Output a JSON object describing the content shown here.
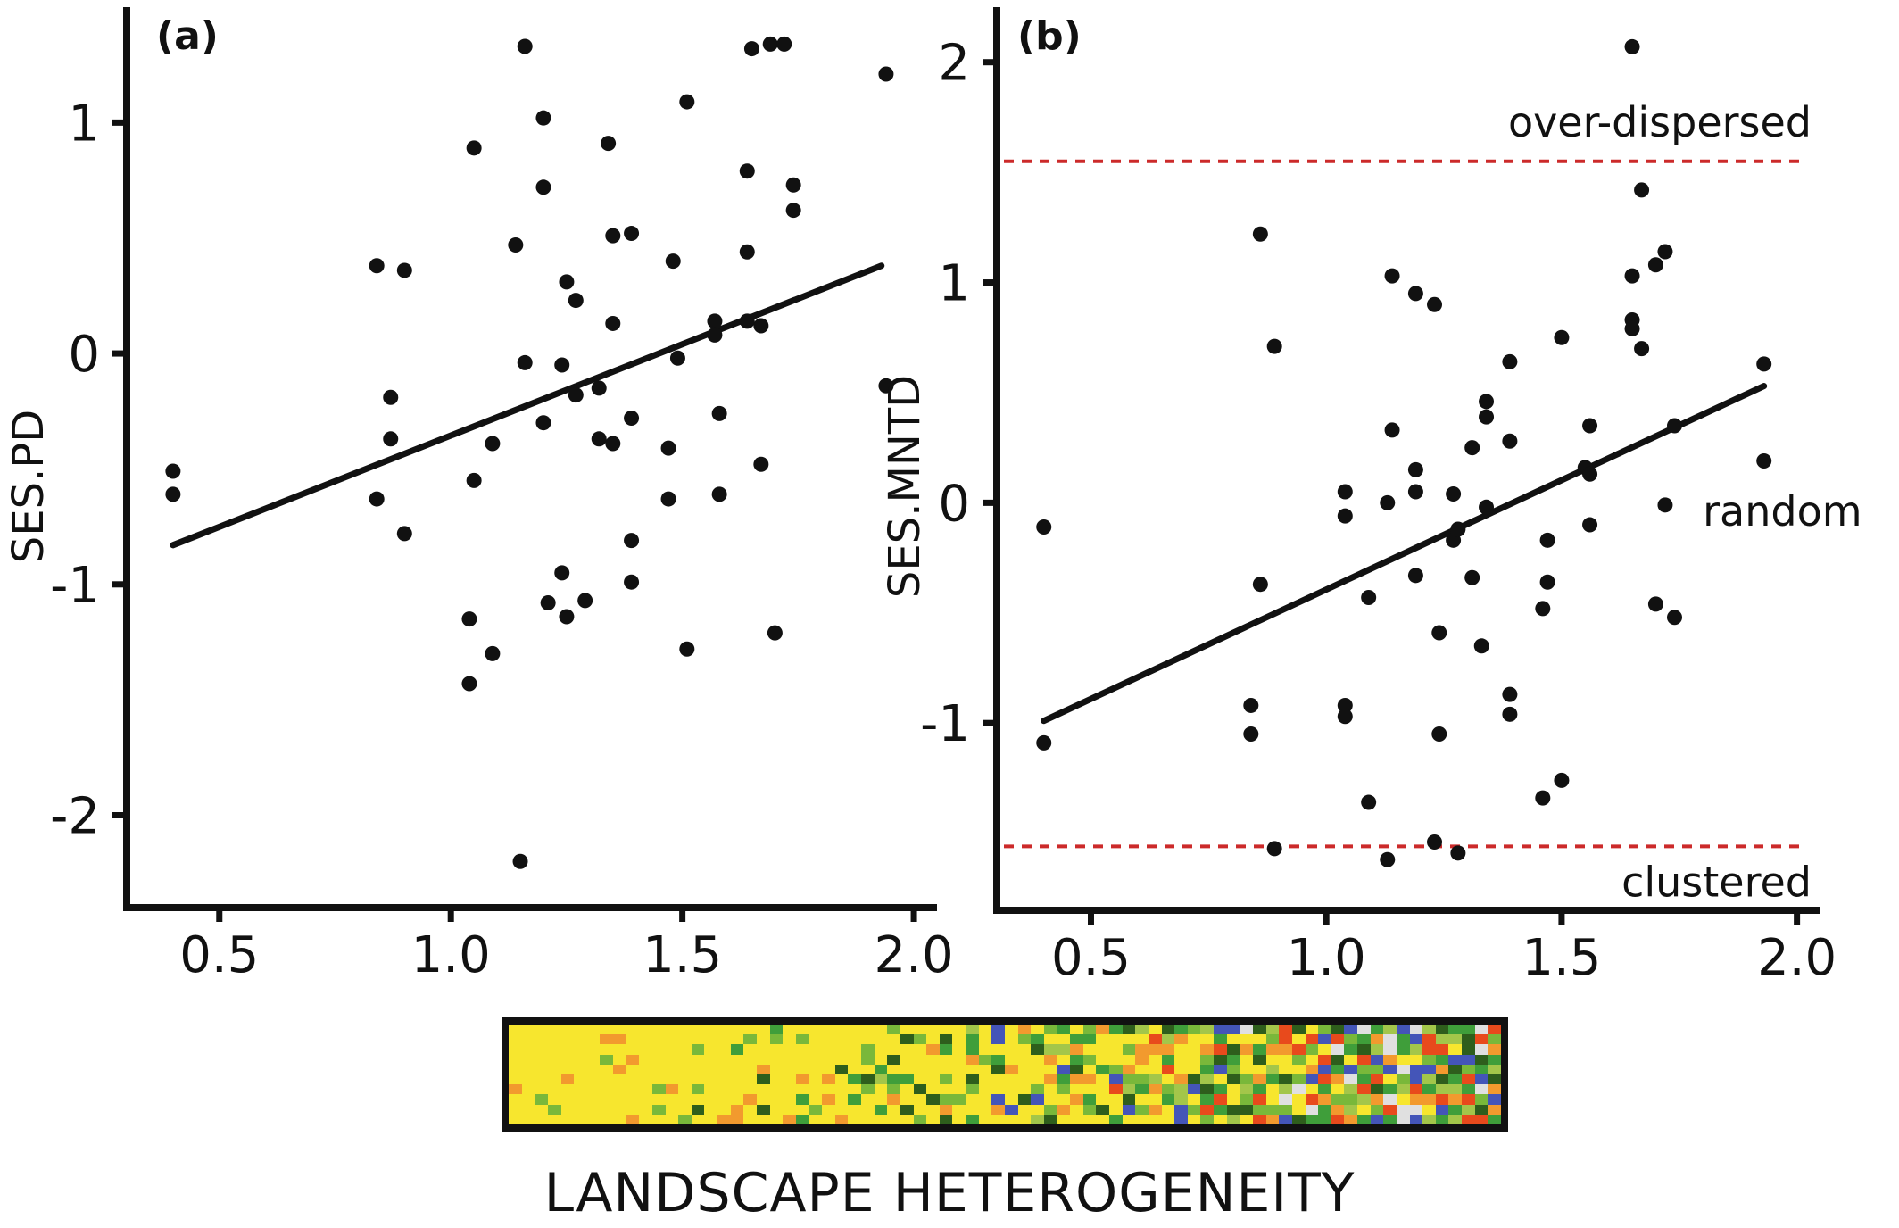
{
  "chart_data": [
    {
      "type": "scatter",
      "panel_label": "(a)",
      "xlabel": "",
      "ylabel": "SES.PD",
      "xlim": [
        0.3,
        2.05
      ],
      "ylim": [
        -2.4,
        1.5
      ],
      "xticks": [
        0.5,
        1.0,
        1.5,
        2.0
      ],
      "xtick_labels": [
        "0.5",
        "1.0",
        "1.5",
        "2.0"
      ],
      "yticks": [
        -2,
        -1,
        0,
        1
      ],
      "ytick_labels": [
        "-2",
        "-1",
        "0",
        "1"
      ],
      "grid": false,
      "points": [
        [
          0.4,
          -0.51
        ],
        [
          0.4,
          -0.61
        ],
        [
          0.84,
          0.38
        ],
        [
          0.84,
          -0.63
        ],
        [
          0.87,
          -0.19
        ],
        [
          0.87,
          -0.37
        ],
        [
          0.9,
          0.36
        ],
        [
          0.9,
          -0.78
        ],
        [
          1.05,
          0.89
        ],
        [
          1.05,
          -0.55
        ],
        [
          1.04,
          -1.15
        ],
        [
          1.04,
          -1.43
        ],
        [
          1.09,
          -0.39
        ],
        [
          1.09,
          -1.3
        ],
        [
          1.14,
          0.47
        ],
        [
          1.16,
          1.33
        ],
        [
          1.16,
          -0.04
        ],
        [
          1.15,
          -2.2
        ],
        [
          1.2,
          1.02
        ],
        [
          1.2,
          0.72
        ],
        [
          1.2,
          -0.3
        ],
        [
          1.21,
          -1.08
        ],
        [
          1.24,
          -0.05
        ],
        [
          1.24,
          -0.95
        ],
        [
          1.25,
          0.31
        ],
        [
          1.25,
          -1.14
        ],
        [
          1.27,
          0.23
        ],
        [
          1.27,
          -0.18
        ],
        [
          1.29,
          -1.07
        ],
        [
          1.32,
          -0.15
        ],
        [
          1.32,
          -0.37
        ],
        [
          1.34,
          0.91
        ],
        [
          1.35,
          0.51
        ],
        [
          1.35,
          0.13
        ],
        [
          1.35,
          -0.39
        ],
        [
          1.39,
          0.52
        ],
        [
          1.39,
          -0.28
        ],
        [
          1.39,
          -0.81
        ],
        [
          1.39,
          -0.99
        ],
        [
          1.47,
          -0.41
        ],
        [
          1.47,
          -0.63
        ],
        [
          1.48,
          0.4
        ],
        [
          1.49,
          -0.02
        ],
        [
          1.51,
          1.09
        ],
        [
          1.51,
          -1.28
        ],
        [
          1.57,
          0.14
        ],
        [
          1.57,
          0.08
        ],
        [
          1.58,
          -0.26
        ],
        [
          1.58,
          -0.61
        ],
        [
          1.64,
          0.79
        ],
        [
          1.64,
          0.44
        ],
        [
          1.64,
          0.14
        ],
        [
          1.65,
          1.32
        ],
        [
          1.67,
          0.12
        ],
        [
          1.67,
          -0.48
        ],
        [
          1.69,
          1.34
        ],
        [
          1.7,
          -1.21
        ],
        [
          1.72,
          1.34
        ],
        [
          1.74,
          0.73
        ],
        [
          1.74,
          0.62
        ],
        [
          1.94,
          1.21
        ],
        [
          1.94,
          -0.14
        ]
      ],
      "trend_line": {
        "x": [
          0.4,
          1.93
        ],
        "y": [
          -0.83,
          0.38
        ]
      }
    },
    {
      "type": "scatter",
      "panel_label": "(b)",
      "xlabel": "",
      "ylabel": "SES.MNTD",
      "xlim": [
        0.3,
        2.05
      ],
      "ylim": [
        -1.85,
        2.25
      ],
      "xticks": [
        0.5,
        1.0,
        1.5,
        2.0
      ],
      "xtick_labels": [
        "0.5",
        "1.0",
        "1.5",
        "2.0"
      ],
      "yticks": [
        -1,
        0,
        1,
        2
      ],
      "ytick_labels": [
        "-1",
        "0",
        "1",
        "2"
      ],
      "grid": false,
      "reference_lines": [
        {
          "y": 1.55,
          "label": "over-dispersed",
          "color": "#cc2a2a"
        },
        {
          "y": -1.56,
          "label": "clustered",
          "color": "#cc2a2a"
        }
      ],
      "annotations": [
        {
          "text": "random",
          "x": 1.8,
          "y": -0.04
        }
      ],
      "points": [
        [
          0.4,
          -0.11
        ],
        [
          0.4,
          -1.09
        ],
        [
          0.84,
          -0.92
        ],
        [
          0.84,
          -1.05
        ],
        [
          0.86,
          1.22
        ],
        [
          0.86,
          -0.37
        ],
        [
          0.89,
          0.71
        ],
        [
          0.89,
          -1.57
        ],
        [
          1.04,
          0.05
        ],
        [
          1.04,
          -0.06
        ],
        [
          1.04,
          -0.92
        ],
        [
          1.04,
          -0.97
        ],
        [
          1.09,
          -0.43
        ],
        [
          1.09,
          -1.36
        ],
        [
          1.13,
          0.0
        ],
        [
          1.13,
          -1.62
        ],
        [
          1.14,
          0.33
        ],
        [
          1.14,
          1.03
        ],
        [
          1.19,
          0.95
        ],
        [
          1.19,
          0.15
        ],
        [
          1.19,
          0.05
        ],
        [
          1.19,
          -0.33
        ],
        [
          1.23,
          0.9
        ],
        [
          1.23,
          -1.54
        ],
        [
          1.24,
          -0.59
        ],
        [
          1.24,
          -1.05
        ],
        [
          1.27,
          0.04
        ],
        [
          1.27,
          -0.17
        ],
        [
          1.28,
          -0.12
        ],
        [
          1.28,
          -1.59
        ],
        [
          1.31,
          0.25
        ],
        [
          1.31,
          -0.34
        ],
        [
          1.33,
          -0.65
        ],
        [
          1.34,
          -0.02
        ],
        [
          1.34,
          0.39
        ],
        [
          1.34,
          0.46
        ],
        [
          1.39,
          0.64
        ],
        [
          1.39,
          0.28
        ],
        [
          1.39,
          -0.87
        ],
        [
          1.39,
          -0.96
        ],
        [
          1.47,
          -0.17
        ],
        [
          1.47,
          -0.36
        ],
        [
          1.46,
          -0.48
        ],
        [
          1.46,
          -1.34
        ],
        [
          1.5,
          0.75
        ],
        [
          1.5,
          -1.26
        ],
        [
          1.55,
          0.16
        ],
        [
          1.56,
          0.13
        ],
        [
          1.56,
          -0.1
        ],
        [
          1.56,
          0.35
        ],
        [
          1.65,
          2.07
        ],
        [
          1.65,
          1.03
        ],
        [
          1.65,
          0.83
        ],
        [
          1.65,
          0.79
        ],
        [
          1.67,
          1.42
        ],
        [
          1.67,
          0.7
        ],
        [
          1.7,
          1.08
        ],
        [
          1.7,
          -0.46
        ],
        [
          1.72,
          1.14
        ],
        [
          1.72,
          -0.01
        ],
        [
          1.74,
          0.35
        ],
        [
          1.74,
          -0.52
        ],
        [
          1.93,
          0.63
        ],
        [
          1.93,
          0.19
        ]
      ],
      "trend_line": {
        "x": [
          0.4,
          1.93
        ],
        "y": [
          -0.99,
          0.53
        ]
      }
    }
  ],
  "landscape_strip": {
    "label": "LANDSCAPE HETEROGENEITY",
    "palette": [
      "#f7e62e",
      "#f29a2e",
      "#79b83a",
      "#3f9e3a",
      "#2e5e1c",
      "#a3c64a",
      "#4455b8",
      "#e84a1c",
      "#e0e0e0"
    ]
  }
}
